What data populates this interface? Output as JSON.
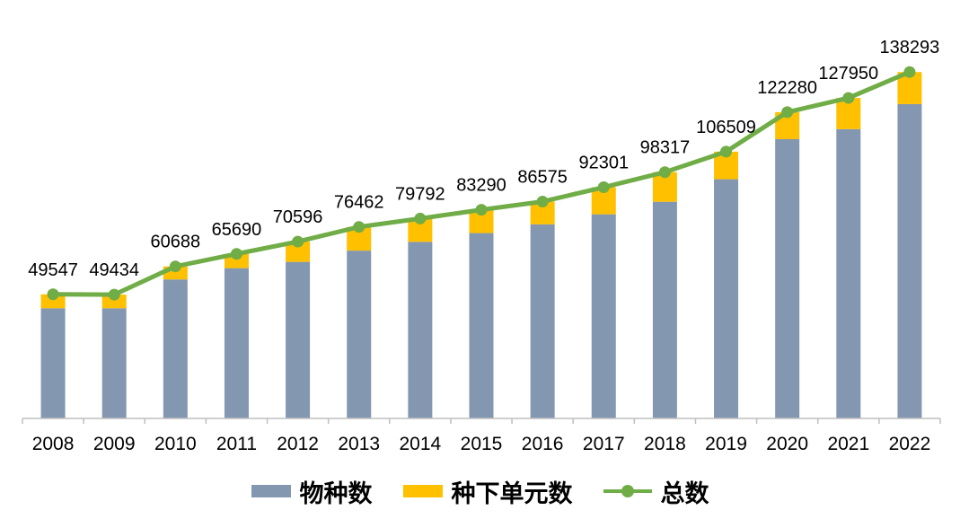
{
  "chart_data": {
    "type": "bar",
    "stacked": true,
    "title": "",
    "xlabel": "",
    "ylabel": "",
    "ylim": [
      0,
      150000
    ],
    "grid": false,
    "legend_position": "bottom",
    "categories": [
      "2008",
      "2009",
      "2010",
      "2011",
      "2012",
      "2013",
      "2014",
      "2015",
      "2016",
      "2017",
      "2018",
      "2019",
      "2020",
      "2021",
      "2022"
    ],
    "series": [
      {
        "name": "物种数",
        "type": "bar",
        "color": "#8497B0",
        "values": [
          44000,
          44000,
          55500,
          60000,
          62500,
          67000,
          70500,
          74000,
          77500,
          81500,
          86500,
          95500,
          111500,
          115500,
          125500
        ]
      },
      {
        "name": "种下单元数",
        "type": "bar",
        "color": "#FFC000",
        "values": [
          5547,
          5434,
          5188,
          5690,
          8096,
          9462,
          9292,
          9290,
          9075,
          10801,
          11817,
          11009,
          10780,
          12450,
          12793
        ]
      },
      {
        "name": "总数",
        "type": "line",
        "color": "#70AD47",
        "values": [
          49547,
          49434,
          60688,
          65690,
          70596,
          76462,
          79792,
          83290,
          86575,
          92301,
          98317,
          106509,
          122280,
          127950,
          138293
        ]
      }
    ],
    "data_labels": [
      "49547",
      "49434",
      "60688",
      "65690",
      "70596",
      "76462",
      "79792",
      "83290",
      "86575",
      "92301",
      "98317",
      "106509",
      "122280",
      "127950",
      "138293"
    ]
  }
}
